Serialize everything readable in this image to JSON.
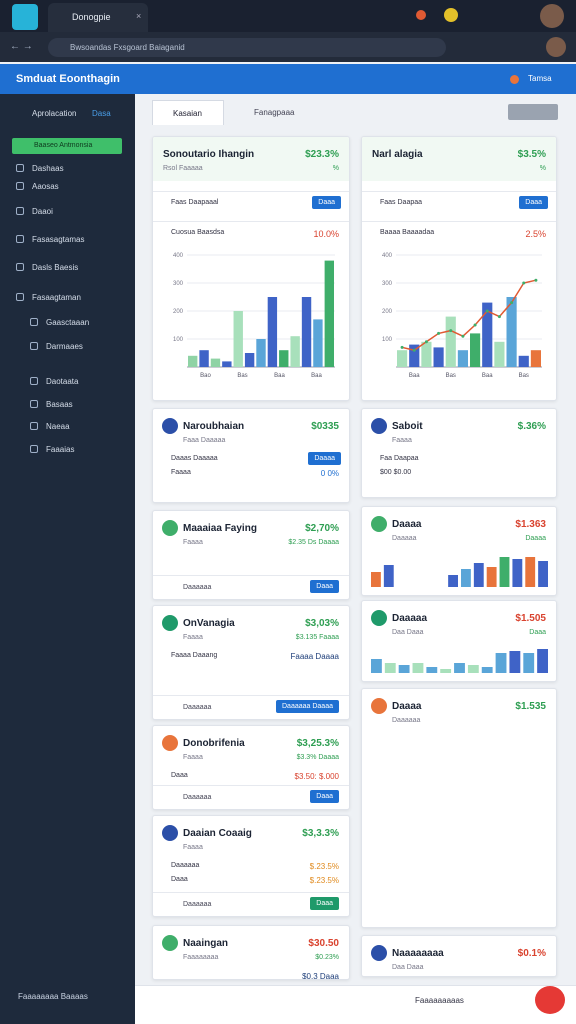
{
  "browser": {
    "tab_title": "Donogpie",
    "address": "Bwsoandas Fxsgoard Baiaganid"
  },
  "app": {
    "title": "Smduat Eoonthagin",
    "user": "Tamsa"
  },
  "sidebar": {
    "header": "Aprolacation",
    "header_badge": "Dasa",
    "active": "Baaseo Antmonsia",
    "items": [
      "Dashaas",
      "Aaosas",
      "Daaoi",
      "Fasasagtamas",
      "Dasls Baesis",
      "Fasaagtaman",
      "Gaasctaaan",
      "Darmaaes",
      "Daotaata",
      "Basaas",
      "Naeaa",
      "Faaaias"
    ],
    "footer": "Faaaaaaaa Baaaas"
  },
  "tabs": [
    "Kasaian",
    "Fanagpaaa"
  ],
  "left_cards": [
    {
      "title": "Sonoutario Ihangin",
      "subtitle": "Rsol Faaaaa",
      "value": "$23.3%",
      "note": "%",
      "rows": [
        {
          "label": "Faas Daapaaal",
          "button": "Daaa"
        },
        {
          "label": "Cuosua Baasdsa",
          "value": "10.0%",
          "value_color": "#d9432f"
        }
      ],
      "chart": {
        "values": [
          40,
          60,
          30,
          20,
          200,
          50,
          100,
          250,
          60,
          110,
          250,
          170,
          380
        ],
        "colors": [
          "#8fd3a5",
          "#3f63c7",
          "#8fd3a5",
          "#3f63c7",
          "#a8e0bb",
          "#3f63c7",
          "#5aa5d8",
          "#3f63c7",
          "#3fae6a",
          "#a8e0bb",
          "#3f63c7",
          "#5aa5d8",
          "#3fae6a"
        ],
        "ylim": [
          0,
          400
        ],
        "yticks": [
          100,
          200,
          300,
          400
        ],
        "x_labels": [
          "Bao",
          "Bas",
          "Baa",
          "Baa"
        ]
      }
    },
    {
      "title": "Naroubhaian",
      "subtitle": "Faaa Daaaaa",
      "value": "$0335",
      "rows": [
        {
          "label": "Daaas Daaaaa",
          "button": "Daaaa"
        },
        {
          "label": "Faaaa",
          "value": "0 0%",
          "value_color": "#1f6fd1"
        }
      ]
    },
    {
      "title": "Maaaiaa Faying",
      "subtitle": "Faaaa",
      "value": "$2,70%",
      "note": "$2.35 Ds Daaaa",
      "footer": "Daaaaaa",
      "button": "Daaa"
    },
    {
      "title": "OnVanagia",
      "subtitle": "Faaaa",
      "value": "$3,03%",
      "note": "$3.135 Faaaa",
      "rows": [
        {
          "label": "Faaaa Daaang",
          "value": "Faaaa Daaaa",
          "value_color": "#1f3f7a"
        }
      ],
      "footer": "Daaaaaa",
      "button": "Daaaaaa Daaaa"
    },
    {
      "title": "Donobrifenia",
      "subtitle": "Faaaa",
      "value": "$3,25.3%",
      "note": "$3.3% Daaaa",
      "rows": [
        {
          "label": "Daaa",
          "value": "$3.50: $.000",
          "value_color": "#d9432f"
        }
      ],
      "footer": "Daaaaaa",
      "button": "Daaa"
    },
    {
      "title": "Daaian Coaaig",
      "subtitle": "Faaaa",
      "value": "$3,3.3%",
      "rows": [
        {
          "label": "Daaaaaa",
          "value": "$.23.5%",
          "value_color": "#e08a1e"
        },
        {
          "label": "Daaa",
          "value": "$.23.5%",
          "value_color": "#e08a1e"
        }
      ],
      "footer": "Daaaaaa",
      "button": "Daaa",
      "button_color": "#1f9a6a"
    },
    {
      "title": "Naaingan",
      "subtitle": "Faaaaaaaa",
      "value": "$30.50",
      "value_color": "#d9432f",
      "note": "$0.23%",
      "rows": [
        {
          "label": "",
          "value": "$0.3 Daaa",
          "value_color": "#1f3f7a"
        }
      ]
    }
  ],
  "right_cards": [
    {
      "title": "Narl alagia",
      "subtitle": "",
      "value": "$3.5%",
      "note": "%",
      "rows": [
        {
          "label": "Faas Daapaa",
          "button": "Daaa"
        },
        {
          "label": "Baaaa Baaaadaa",
          "value": "2.5%",
          "value_color": "#d9432f"
        }
      ],
      "chart": {
        "values": [
          60,
          80,
          90,
          70,
          180,
          60,
          120,
          230,
          90,
          250,
          40,
          60
        ],
        "colors": [
          "#a8e0bb",
          "#3f63c7",
          "#a8e0bb",
          "#3f63c7",
          "#a8e0bb",
          "#5aa5d8",
          "#3fae6a",
          "#3f63c7",
          "#a8e0bb",
          "#5aa5d8",
          "#3f63c7",
          "#e8743b"
        ],
        "line": [
          70,
          60,
          90,
          120,
          130,
          110,
          150,
          200,
          180,
          230,
          300,
          310
        ],
        "ylim": [
          0,
          400
        ],
        "yticks": [
          100,
          200,
          300,
          400
        ],
        "x_labels": [
          "Baa",
          "Bas",
          "Baa",
          "Bas"
        ]
      }
    },
    {
      "title": "Saboit",
      "subtitle": "Faaaa",
      "value": "$.36%",
      "rows": [
        {
          "label": "Faa Daapaa",
          "value": ""
        },
        {
          "label": "$00 $0.00",
          "value": ""
        }
      ]
    },
    {
      "title": "Daaaa",
      "subtitle": "Daaaaa",
      "value": "$1.363",
      "value_color": "#d9432f",
      "note": "Daaaa",
      "mini": {
        "values": [
          15,
          22,
          0,
          0,
          0,
          0,
          12,
          18,
          24,
          20,
          30,
          28,
          30,
          26
        ],
        "colors": [
          "#e8743b",
          "#3f63c7",
          "#3f63c7",
          "#3f63c7",
          "#3f63c7",
          "#3f63c7",
          "#3f63c7",
          "#5aa5d8",
          "#3f63c7",
          "#e8743b",
          "#3fae6a",
          "#3f63c7",
          "#e8743b",
          "#3f63c7"
        ]
      }
    },
    {
      "title": "Daaaaa",
      "subtitle": "Daa Daaa",
      "value": "$1.505",
      "value_color": "#d9432f",
      "note": "Daaa",
      "mini": {
        "values": [
          14,
          10,
          8,
          10,
          6,
          4,
          10,
          8,
          6,
          20,
          22,
          20,
          24
        ],
        "colors": [
          "#5aa5d8",
          "#a8e0bb",
          "#5aa5d8",
          "#a8e0bb",
          "#5aa5d8",
          "#a8e0bb",
          "#5aa5d8",
          "#a8e0bb",
          "#5aa5d8",
          "#5aa5d8",
          "#3f63c7",
          "#5aa5d8",
          "#3f63c7"
        ]
      }
    },
    {
      "title": "Daaaa",
      "subtitle": "Daaaaaa",
      "value": "$1.535"
    },
    {
      "title": "Naaaaaaaa",
      "subtitle": "Daa Daaa",
      "value": "$0.1%",
      "value_color": "#d9432f"
    }
  ],
  "footer_bar": "Faaaaaaaaas"
}
